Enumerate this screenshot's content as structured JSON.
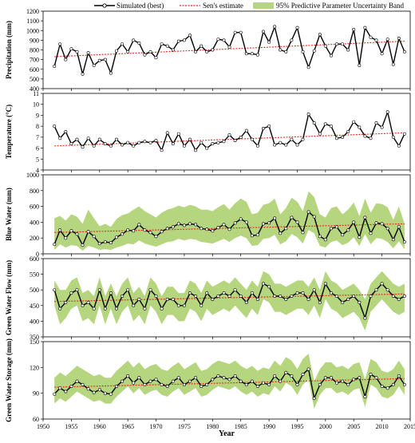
{
  "legend": {
    "simulated": "Simulated (best)",
    "sen": "Sen's estimate",
    "band": "95% Predictive Parameter Uncertainty Band"
  },
  "colors": {
    "band": "#b5d57e",
    "sim": "#000000",
    "sen": "#e8281e",
    "marker_fill": "#ffffff"
  },
  "chart_data": [
    {
      "type": "line",
      "id": "precip",
      "ylabel": "Precipitation (mm)",
      "ylim": [
        400,
        1200
      ],
      "yticks": [
        400,
        500,
        600,
        700,
        800,
        900,
        1000,
        1100,
        1200
      ],
      "xlim": [
        1950,
        2015
      ],
      "x": [
        1952,
        1953,
        1954,
        1955,
        1956,
        1957,
        1958,
        1959,
        1960,
        1961,
        1962,
        1963,
        1964,
        1965,
        1966,
        1967,
        1968,
        1969,
        1970,
        1971,
        1972,
        1973,
        1974,
        1975,
        1976,
        1977,
        1978,
        1979,
        1980,
        1981,
        1982,
        1983,
        1984,
        1985,
        1986,
        1987,
        1988,
        1989,
        1990,
        1991,
        1992,
        1993,
        1994,
        1995,
        1996,
        1997,
        1998,
        1999,
        2000,
        2001,
        2002,
        2003,
        2004,
        2005,
        2006,
        2007,
        2008,
        2009,
        2010,
        2011,
        2012,
        2013,
        2014
      ],
      "sim": [
        630,
        860,
        700,
        810,
        780,
        550,
        770,
        640,
        690,
        700,
        560,
        790,
        860,
        780,
        900,
        870,
        750,
        780,
        720,
        860,
        840,
        800,
        890,
        900,
        950,
        780,
        840,
        780,
        800,
        910,
        900,
        830,
        980,
        980,
        760,
        760,
        750,
        990,
        880,
        1040,
        800,
        780,
        900,
        1030,
        780,
        620,
        790,
        960,
        840,
        740,
        860,
        860,
        800,
        1010,
        640,
        1030,
        930,
        900,
        760,
        910,
        650,
        920,
        780
      ],
      "sen_start": 730,
      "sen_end": 890
    },
    {
      "type": "line",
      "id": "temp",
      "ylabel": "Temperature (°C)",
      "ylim": [
        4,
        11
      ],
      "yticks": [
        4,
        5,
        6,
        7,
        8,
        9,
        10,
        11
      ],
      "xlim": [
        1950,
        2015
      ],
      "x": [
        1952,
        1953,
        1954,
        1955,
        1956,
        1957,
        1958,
        1959,
        1960,
        1961,
        1962,
        1963,
        1964,
        1965,
        1966,
        1967,
        1968,
        1969,
        1970,
        1971,
        1972,
        1973,
        1974,
        1975,
        1976,
        1977,
        1978,
        1979,
        1980,
        1981,
        1982,
        1983,
        1984,
        1985,
        1986,
        1987,
        1988,
        1989,
        1990,
        1991,
        1992,
        1993,
        1994,
        1995,
        1996,
        1997,
        1998,
        1999,
        2000,
        2001,
        2002,
        2003,
        2004,
        2005,
        2006,
        2007,
        2008,
        2009,
        2010,
        2011,
        2012,
        2013,
        2014
      ],
      "sim": [
        8.0,
        6.9,
        7.5,
        6.4,
        6.8,
        6.1,
        6.9,
        6.2,
        6.8,
        6.4,
        6.2,
        6.8,
        6.3,
        6.5,
        6.2,
        6.5,
        6.6,
        6.5,
        6.7,
        5.8,
        7.4,
        6.4,
        7.3,
        6.2,
        6.8,
        5.8,
        6.5,
        6.0,
        6.4,
        6.5,
        6.6,
        7.2,
        6.7,
        7.0,
        7.6,
        6.8,
        6.2,
        7.8,
        8.0,
        6.3,
        6.5,
        6.3,
        6.8,
        6.3,
        6.8,
        9.1,
        8.3,
        7.3,
        8.2,
        8.0,
        6.9,
        7.0,
        7.5,
        8.4,
        7.9,
        7.1,
        6.9,
        8.3,
        7.9,
        9.3,
        7.0,
        6.2,
        7.3
      ],
      "sen_start": 6.2,
      "sen_end": 7.4
    },
    {
      "type": "line",
      "id": "blue",
      "ylabel": "Blue Water (mm)",
      "ylim": [
        0,
        1000
      ],
      "yticks": [
        0,
        200,
        400,
        600,
        800,
        1000
      ],
      "xlim": [
        1950,
        2015
      ],
      "x": [
        1952,
        1953,
        1954,
        1955,
        1956,
        1957,
        1958,
        1959,
        1960,
        1961,
        1962,
        1963,
        1964,
        1965,
        1966,
        1967,
        1968,
        1969,
        1970,
        1971,
        1972,
        1973,
        1974,
        1975,
        1976,
        1977,
        1978,
        1979,
        1980,
        1981,
        1982,
        1983,
        1984,
        1985,
        1986,
        1987,
        1988,
        1989,
        1990,
        1991,
        1992,
        1993,
        1994,
        1995,
        1996,
        1997,
        1998,
        1999,
        2000,
        2001,
        2002,
        2003,
        2004,
        2005,
        2006,
        2007,
        2008,
        2009,
        2010,
        2011,
        2012,
        2013,
        2014
      ],
      "sim": [
        120,
        300,
        200,
        290,
        250,
        110,
        280,
        220,
        130,
        150,
        140,
        210,
        250,
        300,
        290,
        370,
        300,
        270,
        220,
        280,
        320,
        340,
        380,
        360,
        380,
        370,
        320,
        310,
        290,
        330,
        370,
        310,
        390,
        440,
        400,
        230,
        240,
        380,
        390,
        450,
        260,
        320,
        460,
        400,
        270,
        530,
        470,
        220,
        180,
        320,
        340,
        240,
        300,
        400,
        210,
        460,
        260,
        390,
        380,
        320,
        180,
        340,
        150
      ],
      "upper": [
        450,
        480,
        420,
        500,
        470,
        380,
        560,
        450,
        350,
        380,
        340,
        440,
        490,
        510,
        560,
        600,
        540,
        500,
        460,
        520,
        560,
        580,
        610,
        590,
        620,
        600,
        560,
        560,
        540,
        590,
        630,
        560,
        640,
        700,
        660,
        500,
        520,
        620,
        640,
        700,
        500,
        580,
        710,
        660,
        540,
        790,
        720,
        500,
        460,
        580,
        600,
        500,
        560,
        650,
        480,
        700,
        520,
        640,
        630,
        590,
        430,
        600,
        380
      ],
      "lower": [
        50,
        120,
        80,
        110,
        100,
        40,
        100,
        80,
        50,
        60,
        50,
        80,
        100,
        130,
        120,
        170,
        130,
        110,
        90,
        120,
        150,
        160,
        190,
        170,
        190,
        180,
        150,
        140,
        130,
        160,
        190,
        150,
        200,
        230,
        200,
        100,
        110,
        190,
        200,
        240,
        120,
        160,
        250,
        210,
        130,
        300,
        260,
        100,
        80,
        150,
        170,
        110,
        140,
        210,
        100,
        250,
        120,
        200,
        190,
        150,
        70,
        160,
        60
      ],
      "sen_start": 270,
      "sen_end": 380
    },
    {
      "type": "line",
      "id": "gwf",
      "ylabel": "Green Water Flow (mm)",
      "ylim": [
        350,
        600
      ],
      "yticks": [
        350,
        400,
        450,
        500,
        550,
        600
      ],
      "xlim": [
        1950,
        2015
      ],
      "x": [
        1952,
        1953,
        1954,
        1955,
        1956,
        1957,
        1958,
        1959,
        1960,
        1961,
        1962,
        1963,
        1964,
        1965,
        1966,
        1967,
        1968,
        1969,
        1970,
        1971,
        1972,
        1973,
        1974,
        1975,
        1976,
        1977,
        1978,
        1979,
        1980,
        1981,
        1982,
        1983,
        1984,
        1985,
        1986,
        1987,
        1988,
        1989,
        1990,
        1991,
        1992,
        1993,
        1994,
        1995,
        1996,
        1997,
        1998,
        1999,
        2000,
        2001,
        2002,
        2003,
        2004,
        2005,
        2006,
        2007,
        2008,
        2009,
        2010,
        2011,
        2012,
        2013,
        2014
      ],
      "sim": [
        500,
        440,
        460,
        490,
        500,
        450,
        460,
        440,
        500,
        440,
        490,
        440,
        480,
        500,
        450,
        470,
        440,
        500,
        480,
        440,
        470,
        470,
        450,
        450,
        490,
        480,
        450,
        490,
        470,
        480,
        490,
        480,
        500,
        480,
        460,
        490,
        470,
        520,
        510,
        480,
        480,
        470,
        480,
        490,
        490,
        470,
        500,
        460,
        520,
        490,
        480,
        460,
        470,
        480,
        460,
        410,
        480,
        500,
        520,
        500,
        480,
        470,
        480
      ],
      "upper": [
        530,
        500,
        500,
        530,
        540,
        490,
        500,
        480,
        540,
        480,
        520,
        480,
        520,
        540,
        490,
        510,
        480,
        540,
        520,
        480,
        510,
        510,
        490,
        490,
        530,
        520,
        490,
        530,
        510,
        520,
        530,
        520,
        540,
        520,
        500,
        530,
        510,
        560,
        550,
        520,
        520,
        510,
        520,
        530,
        530,
        510,
        540,
        500,
        560,
        530,
        520,
        500,
        510,
        520,
        500,
        470,
        520,
        540,
        560,
        540,
        520,
        510,
        520
      ],
      "lower": [
        450,
        390,
        410,
        440,
        450,
        400,
        410,
        390,
        450,
        390,
        440,
        390,
        430,
        450,
        400,
        420,
        390,
        450,
        430,
        390,
        420,
        420,
        400,
        400,
        440,
        430,
        400,
        440,
        420,
        430,
        440,
        430,
        450,
        430,
        410,
        440,
        420,
        470,
        460,
        430,
        430,
        420,
        430,
        440,
        440,
        420,
        450,
        410,
        470,
        440,
        430,
        410,
        420,
        430,
        410,
        370,
        430,
        450,
        470,
        450,
        430,
        420,
        430
      ],
      "sen_start": 463,
      "sen_end": 487
    },
    {
      "type": "line",
      "id": "gws",
      "ylabel": "Green Water Storage (mm)",
      "ylim": [
        60,
        150
      ],
      "yticks": [
        60,
        90,
        120,
        150
      ],
      "xlim": [
        1950,
        2015
      ],
      "xticks": [
        1950,
        1955,
        1960,
        1965,
        1970,
        1975,
        1980,
        1985,
        1990,
        1995,
        2000,
        2005,
        2010,
        2015
      ],
      "xlabel": "Year",
      "x": [
        1952,
        1953,
        1954,
        1955,
        1956,
        1957,
        1958,
        1959,
        1960,
        1961,
        1962,
        1963,
        1964,
        1965,
        1966,
        1967,
        1968,
        1969,
        1970,
        1971,
        1972,
        1973,
        1974,
        1975,
        1976,
        1977,
        1978,
        1979,
        1980,
        1981,
        1982,
        1983,
        1984,
        1985,
        1986,
        1987,
        1988,
        1989,
        1990,
        1991,
        1992,
        1993,
        1994,
        1995,
        1996,
        1997,
        1998,
        1999,
        2000,
        2001,
        2002,
        2003,
        2004,
        2005,
        2006,
        2007,
        2008,
        2009,
        2010,
        2011,
        2012,
        2013,
        2014
      ],
      "sim": [
        89,
        96,
        92,
        98,
        104,
        100,
        95,
        91,
        94,
        90,
        89,
        98,
        104,
        110,
        102,
        108,
        100,
        104,
        106,
        100,
        98,
        104,
        108,
        100,
        104,
        108,
        98,
        100,
        106,
        110,
        108,
        106,
        110,
        104,
        100,
        104,
        98,
        102,
        100,
        110,
        104,
        114,
        110,
        100,
        112,
        118,
        84,
        100,
        108,
        108,
        102,
        104,
        100,
        106,
        108,
        86,
        112,
        108,
        98,
        96,
        100,
        110,
        100
      ],
      "upper": [
        108,
        114,
        110,
        116,
        122,
        118,
        114,
        110,
        112,
        108,
        108,
        116,
        122,
        128,
        120,
        126,
        118,
        122,
        124,
        118,
        116,
        122,
        126,
        118,
        122,
        126,
        116,
        118,
        124,
        128,
        126,
        124,
        128,
        122,
        118,
        122,
        116,
        120,
        118,
        128,
        122,
        132,
        128,
        118,
        130,
        136,
        104,
        118,
        126,
        126,
        120,
        122,
        118,
        124,
        126,
        106,
        130,
        126,
        116,
        114,
        118,
        128,
        118
      ],
      "lower": [
        78,
        84,
        80,
        86,
        92,
        88,
        84,
        80,
        82,
        78,
        78,
        86,
        92,
        98,
        90,
        96,
        88,
        92,
        94,
        88,
        86,
        92,
        96,
        88,
        92,
        96,
        86,
        88,
        94,
        98,
        96,
        94,
        98,
        92,
        88,
        92,
        86,
        90,
        88,
        98,
        92,
        102,
        98,
        88,
        100,
        106,
        72,
        88,
        96,
        96,
        90,
        92,
        88,
        94,
        96,
        74,
        100,
        96,
        86,
        84,
        88,
        98,
        88
      ],
      "sen_start": 97,
      "sen_end": 107
    }
  ]
}
